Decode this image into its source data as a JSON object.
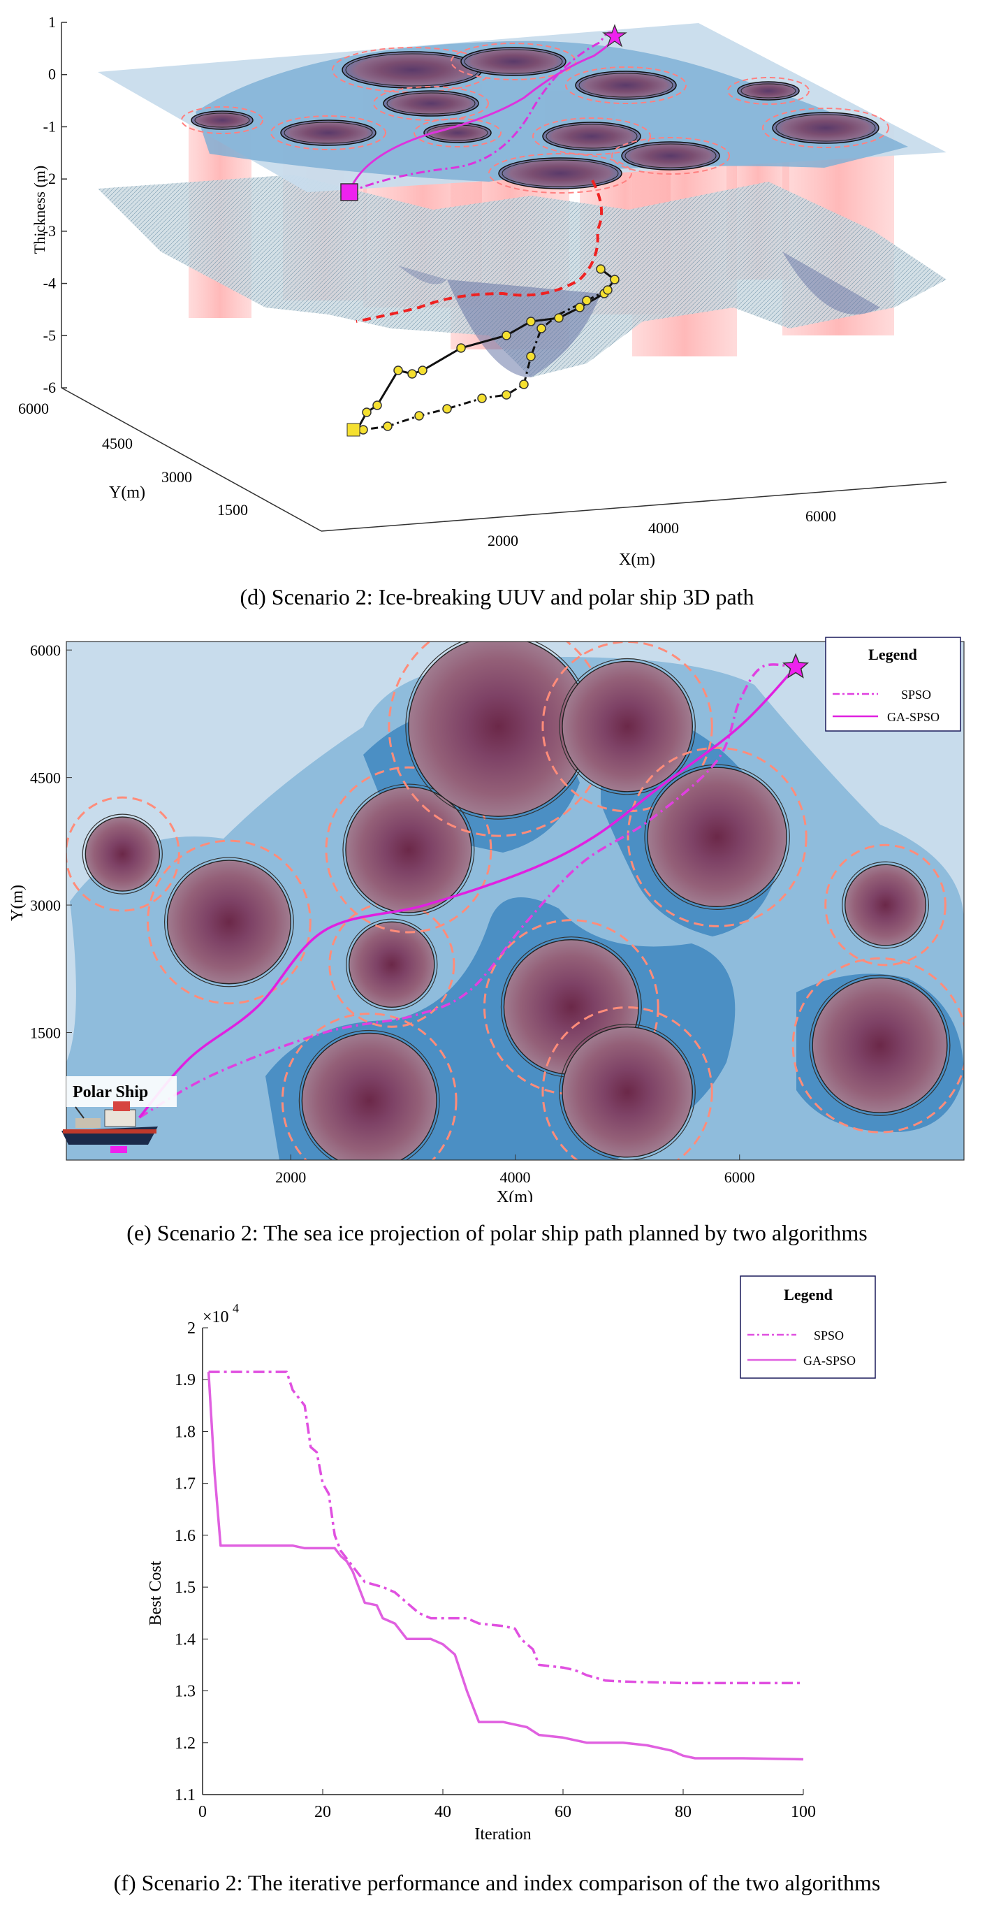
{
  "panels": [
    {
      "caption": "(d)    Scenario 2: Ice-breaking UUV and polar ship 3D path",
      "zlabel": "Thickness (m)",
      "ylabel": "Y(m)",
      "xlabel": "X(m)",
      "z_ticks": [
        "1",
        "0",
        "-1",
        "-2",
        "-3",
        "-4",
        "-5",
        "-6"
      ],
      "y_ticks": [
        "6000",
        "4500",
        "3000",
        "1500"
      ],
      "x_ticks": [
        "2000",
        "4000",
        "6000"
      ]
    },
    {
      "caption": "(e) Scenario 2: The sea ice projection of polar ship path planned by two algorithms",
      "xlabel": "X(m)",
      "ylabel": "Y(m)",
      "legend_title": "Legend",
      "ship_label": "Polar Ship"
    },
    {
      "caption": "(f) Scenario 2: The iterative performance and index comparison of the two algorithms",
      "xlabel": "Iteration",
      "ylabel": "Best Cost",
      "multiplier_base": "×10",
      "multiplier_exp": "4",
      "legend_title": "Legend"
    }
  ],
  "chart_data": [
    {
      "type": "scatter",
      "zlim": [
        -6,
        1
      ],
      "xticks": [
        2000,
        4000,
        6000
      ],
      "yticks": [
        1500,
        3000,
        4500,
        6000
      ],
      "zticks": [
        1,
        0,
        -1,
        -2,
        -3,
        -4,
        -5,
        -6
      ],
      "grid": false
    },
    {
      "type": "line",
      "xlim": [
        0,
        8000
      ],
      "ylim": [
        0,
        6100
      ],
      "xticks": [
        2000,
        4000,
        6000
      ],
      "yticks": [
        1500,
        3000,
        4500,
        6000
      ],
      "legend": "top-right",
      "series": [
        {
          "name": "SPSO",
          "style": "dash-dot",
          "color": "#e040e0",
          "points": [
            [
              650,
              500
            ],
            [
              1300,
              1000
            ],
            [
              2300,
              1500
            ],
            [
              3100,
              1700
            ],
            [
              3600,
              2000
            ],
            [
              4100,
              2800
            ],
            [
              4600,
              3500
            ],
            [
              5200,
              4000
            ],
            [
              5800,
              4700
            ],
            [
              6000,
              5400
            ],
            [
              6200,
              5800
            ],
            [
              6500,
              5800
            ]
          ]
        },
        {
          "name": "GA-SPSO",
          "style": "solid",
          "color": "#e020e0",
          "points": [
            [
              650,
              500
            ],
            [
              1100,
              1200
            ],
            [
              1700,
              1800
            ],
            [
              2300,
              2700
            ],
            [
              3200,
              3000
            ],
            [
              4100,
              3400
            ],
            [
              4700,
              3800
            ],
            [
              5300,
              4400
            ],
            [
              6000,
              5100
            ],
            [
              6500,
              5800
            ]
          ]
        }
      ],
      "obstacles": [
        {
          "x": 500,
          "y": 3600,
          "r": 330
        },
        {
          "x": 1450,
          "y": 2800,
          "r": 550
        },
        {
          "x": 2900,
          "y": 2300,
          "r": 380
        },
        {
          "x": 3050,
          "y": 3650,
          "r": 560
        },
        {
          "x": 3850,
          "y": 5100,
          "r": 800
        },
        {
          "x": 5000,
          "y": 5100,
          "r": 580
        },
        {
          "x": 5800,
          "y": 3800,
          "r": 620
        },
        {
          "x": 7300,
          "y": 3000,
          "r": 360
        },
        {
          "x": 4500,
          "y": 1800,
          "r": 600
        },
        {
          "x": 5000,
          "y": 800,
          "r": 580
        },
        {
          "x": 2700,
          "y": 700,
          "r": 600
        },
        {
          "x": 7250,
          "y": 1350,
          "r": 600
        }
      ]
    },
    {
      "type": "line",
      "xlim": [
        0,
        100
      ],
      "ylim": [
        1.1,
        2.0
      ],
      "y_multiplier": "10^4",
      "xticks": [
        0,
        20,
        40,
        60,
        80,
        100
      ],
      "yticks": [
        1.1,
        1.2,
        1.3,
        1.4,
        1.5,
        1.6,
        1.7,
        1.8,
        1.9,
        2.0
      ],
      "legend": "top-right",
      "series": [
        {
          "name": "SPSO",
          "style": "dash-dot",
          "color": "#e050e0",
          "points": [
            [
              1,
              1.915
            ],
            [
              14,
              1.915
            ],
            [
              15,
              1.88
            ],
            [
              17,
              1.85
            ],
            [
              18,
              1.77
            ],
            [
              19,
              1.76
            ],
            [
              20,
              1.7
            ],
            [
              21,
              1.68
            ],
            [
              22,
              1.6
            ],
            [
              23,
              1.57
            ],
            [
              25,
              1.54
            ],
            [
              27,
              1.51
            ],
            [
              30,
              1.5
            ],
            [
              32,
              1.49
            ],
            [
              34,
              1.47
            ],
            [
              36,
              1.45
            ],
            [
              38,
              1.44
            ],
            [
              44,
              1.44
            ],
            [
              46,
              1.43
            ],
            [
              50,
              1.425
            ],
            [
              52,
              1.42
            ],
            [
              53,
              1.4
            ],
            [
              55,
              1.38
            ],
            [
              56,
              1.35
            ],
            [
              60,
              1.345
            ],
            [
              62,
              1.34
            ],
            [
              64,
              1.33
            ],
            [
              67,
              1.32
            ],
            [
              70,
              1.318
            ],
            [
              80,
              1.315
            ],
            [
              100,
              1.315
            ]
          ]
        },
        {
          "name": "GA-SPSO",
          "style": "solid",
          "color": "#e060e0",
          "points": [
            [
              1,
              1.915
            ],
            [
              2,
              1.72
            ],
            [
              3,
              1.58
            ],
            [
              15,
              1.58
            ],
            [
              17,
              1.575
            ],
            [
              20,
              1.575
            ],
            [
              22,
              1.575
            ],
            [
              23,
              1.56
            ],
            [
              24,
              1.55
            ],
            [
              25,
              1.53
            ],
            [
              26,
              1.5
            ],
            [
              27,
              1.47
            ],
            [
              29,
              1.465
            ],
            [
              30,
              1.44
            ],
            [
              32,
              1.43
            ],
            [
              34,
              1.4
            ],
            [
              38,
              1.4
            ],
            [
              40,
              1.39
            ],
            [
              41,
              1.38
            ],
            [
              42,
              1.37
            ],
            [
              44,
              1.3
            ],
            [
              46,
              1.24
            ],
            [
              50,
              1.24
            ],
            [
              52,
              1.235
            ],
            [
              54,
              1.23
            ],
            [
              56,
              1.215
            ],
            [
              60,
              1.21
            ],
            [
              64,
              1.2
            ],
            [
              70,
              1.2
            ],
            [
              74,
              1.195
            ],
            [
              78,
              1.185
            ],
            [
              80,
              1.175
            ],
            [
              82,
              1.17
            ],
            [
              90,
              1.17
            ],
            [
              100,
              1.168
            ]
          ]
        }
      ]
    }
  ]
}
